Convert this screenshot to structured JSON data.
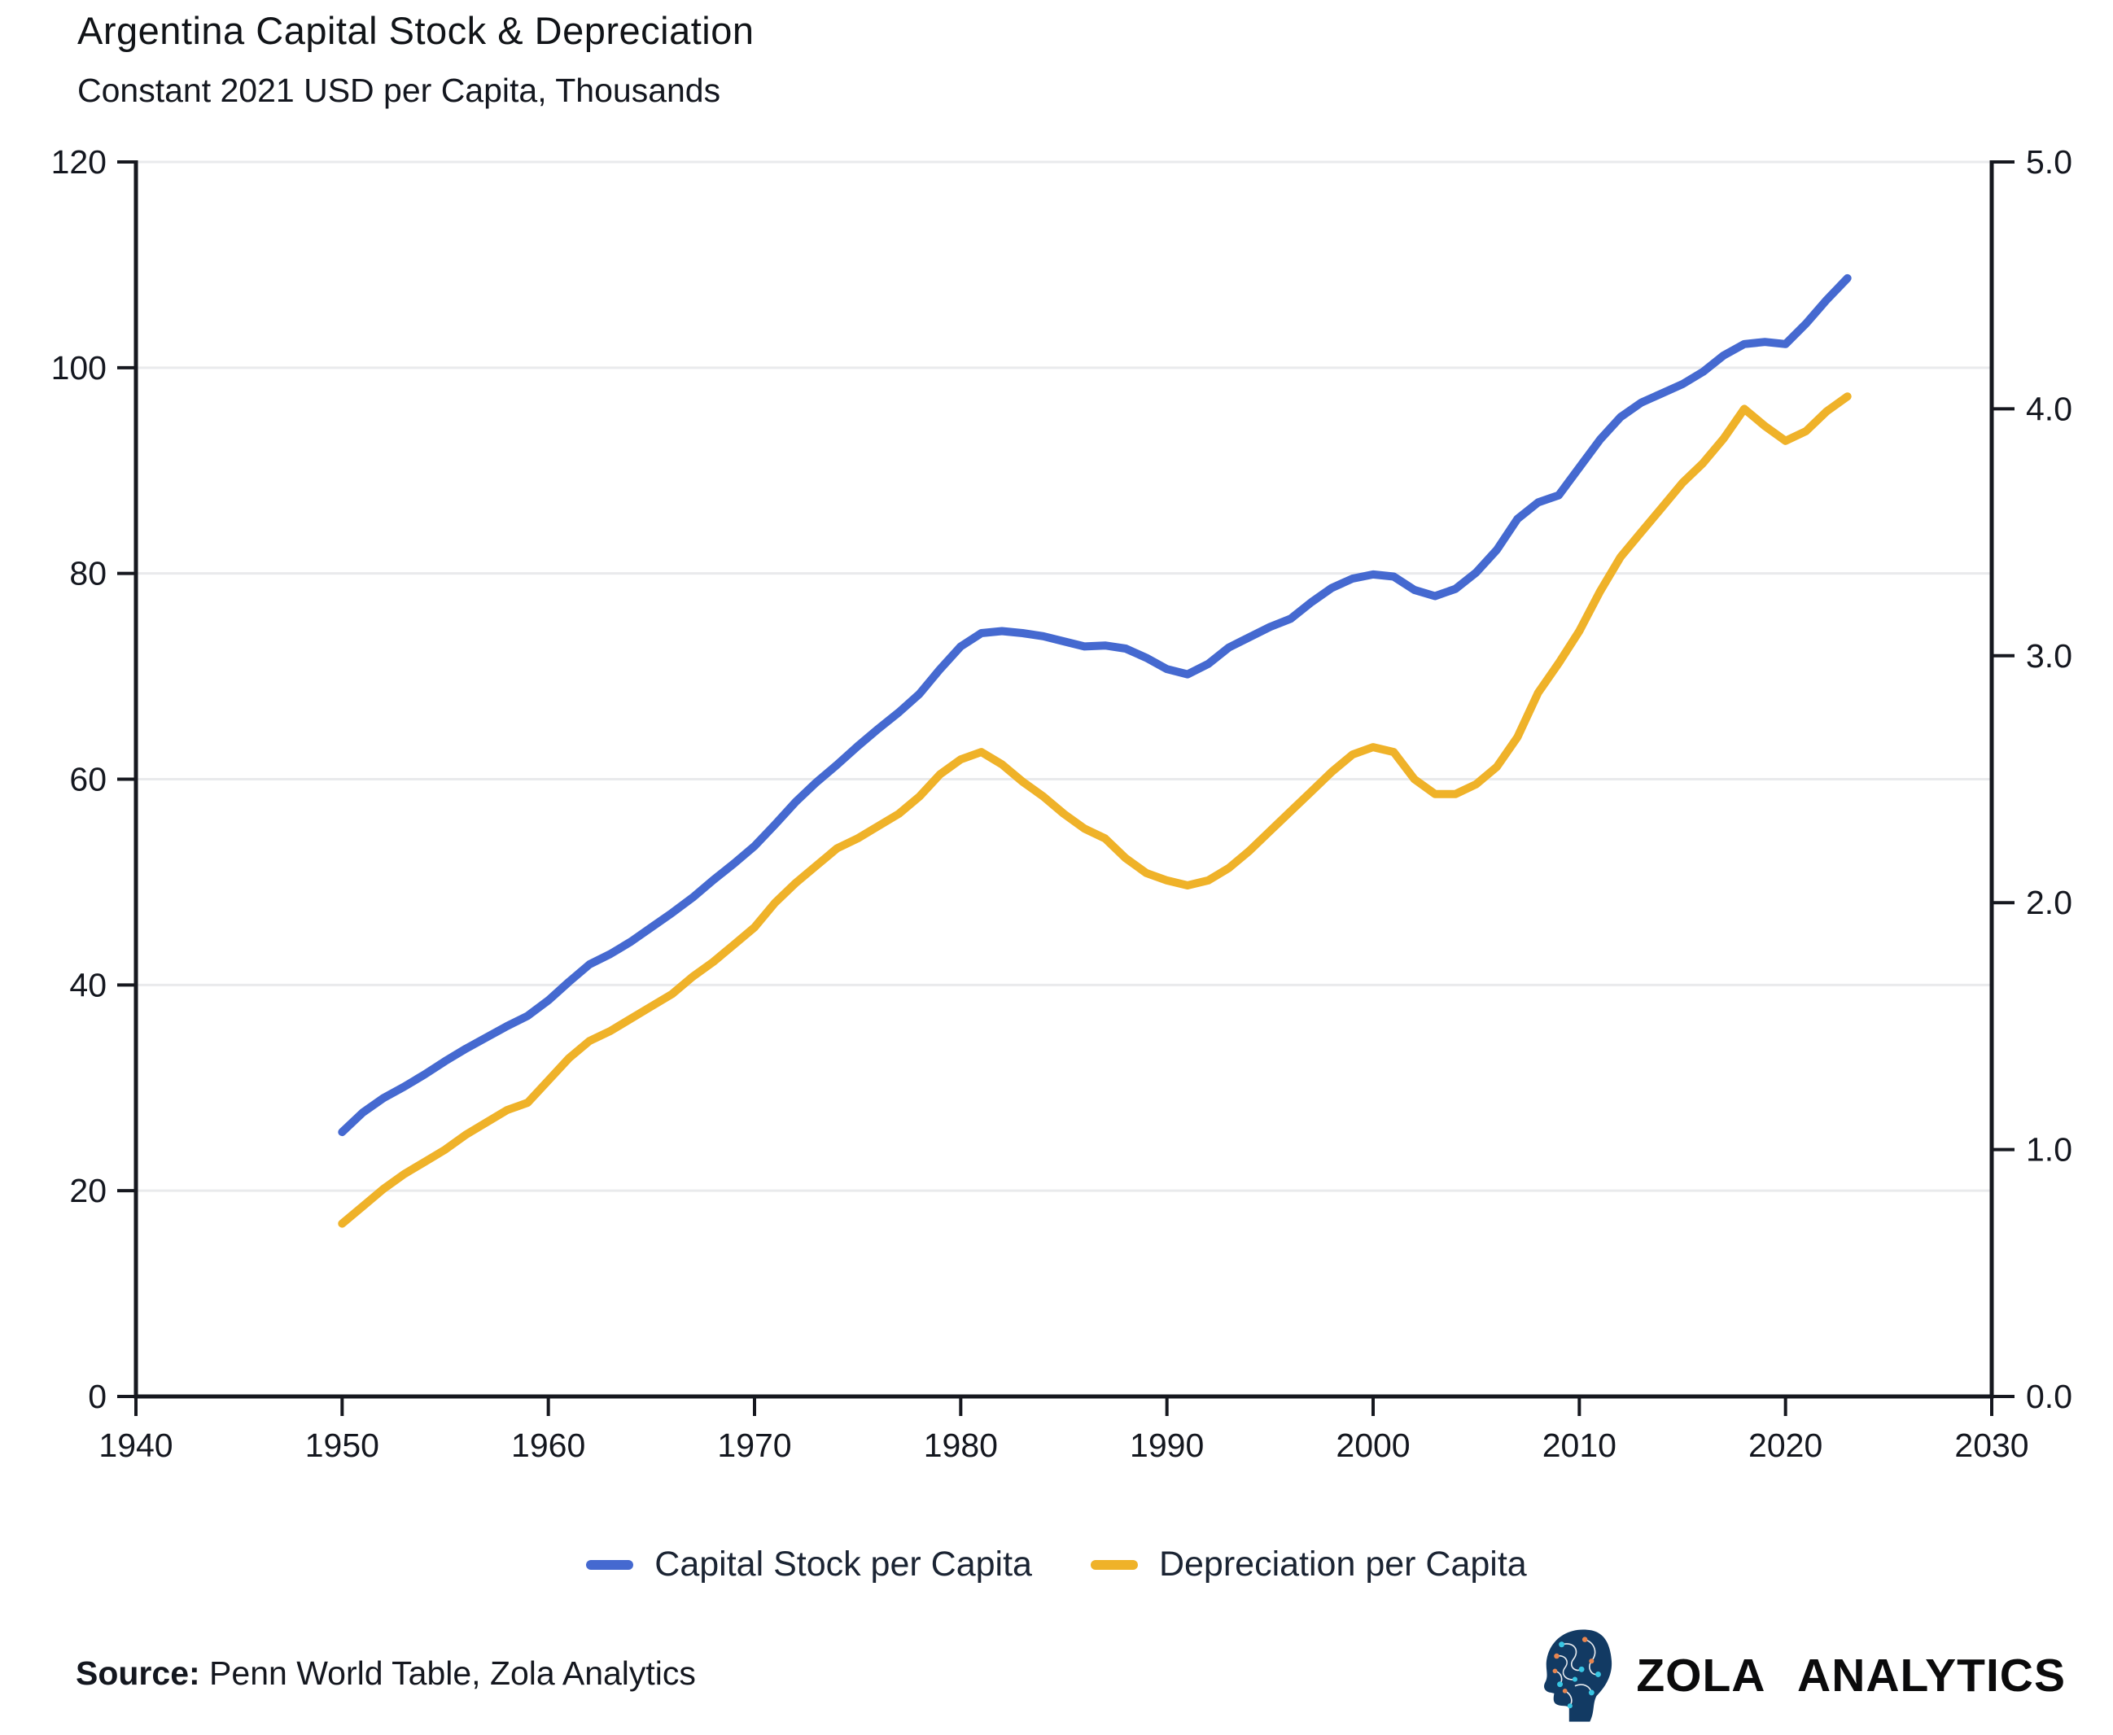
{
  "header": {
    "title": "Argentina Capital Stock & Depreciation",
    "subtitle": "Constant 2021 USD per Capita, Thousands"
  },
  "chart_data": {
    "type": "line",
    "title": "Argentina Capital Stock & Depreciation",
    "subtitle": "Constant 2021 USD per Capita, Thousands",
    "grid": true,
    "legend_position": "bottom",
    "x_axis": {
      "min": 1940,
      "max": 2030,
      "tick_step": 10,
      "ticks": [
        1940,
        1950,
        1960,
        1970,
        1980,
        1990,
        2000,
        2010,
        2020,
        2030
      ]
    },
    "left_axis": {
      "min": 0,
      "max": 120,
      "tick_step": 20,
      "ticks": [
        0,
        20,
        40,
        60,
        80,
        100,
        120
      ]
    },
    "right_axis": {
      "min": 0,
      "max": 5,
      "tick_step": 1,
      "tick_labels": [
        "0.0",
        "1.0",
        "2.0",
        "3.0",
        "4.0",
        "5.0"
      ],
      "ticks": [
        0,
        1,
        2,
        3,
        4,
        5
      ]
    },
    "x": [
      1950,
      1951,
      1952,
      1953,
      1954,
      1955,
      1956,
      1957,
      1958,
      1959,
      1960,
      1961,
      1962,
      1963,
      1964,
      1965,
      1966,
      1967,
      1968,
      1969,
      1970,
      1971,
      1972,
      1973,
      1974,
      1975,
      1976,
      1977,
      1978,
      1979,
      1980,
      1981,
      1982,
      1983,
      1984,
      1985,
      1986,
      1987,
      1988,
      1989,
      1990,
      1991,
      1992,
      1993,
      1994,
      1995,
      1996,
      1997,
      1998,
      1999,
      2000,
      2001,
      2002,
      2003,
      2004,
      2005,
      2006,
      2007,
      2008,
      2009,
      2010,
      2011,
      2012,
      2013,
      2014,
      2015,
      2016,
      2017,
      2018,
      2019,
      2020,
      2021,
      2022,
      2023
    ],
    "series": [
      {
        "name": "Capital Stock per Capita",
        "axis": "left",
        "color": "#4569d0",
        "values": [
          25.7,
          27.6,
          29.0,
          30.1,
          31.3,
          32.6,
          33.8,
          34.9,
          36.0,
          37.0,
          38.5,
          40.3,
          42.0,
          43.0,
          44.2,
          45.6,
          47.0,
          48.5,
          50.2,
          51.8,
          53.5,
          55.6,
          57.8,
          59.7,
          61.4,
          63.2,
          64.9,
          66.5,
          68.3,
          70.7,
          72.9,
          74.2,
          74.4,
          74.2,
          73.9,
          73.4,
          72.9,
          73.0,
          72.7,
          71.8,
          70.7,
          70.2,
          71.2,
          72.8,
          73.8,
          74.8,
          75.6,
          77.2,
          78.6,
          79.5,
          79.9,
          79.7,
          78.4,
          77.8,
          78.5,
          80.1,
          82.3,
          85.3,
          86.9,
          87.6,
          90.3,
          93.0,
          95.2,
          96.6,
          97.5,
          98.4,
          99.6,
          101.2,
          102.3,
          102.5,
          102.3,
          104.3,
          106.6,
          108.7
        ]
      },
      {
        "name": "Depreciation per Capita",
        "axis": "right",
        "color": "#efb229",
        "values": [
          0.7,
          0.77,
          0.84,
          0.9,
          0.95,
          1.0,
          1.06,
          1.11,
          1.16,
          1.19,
          1.28,
          1.37,
          1.44,
          1.48,
          1.53,
          1.58,
          1.63,
          1.7,
          1.76,
          1.83,
          1.9,
          2.0,
          2.08,
          2.15,
          2.22,
          2.26,
          2.31,
          2.36,
          2.43,
          2.52,
          2.58,
          2.61,
          2.56,
          2.49,
          2.43,
          2.36,
          2.3,
          2.26,
          2.18,
          2.12,
          2.09,
          2.07,
          2.09,
          2.14,
          2.21,
          2.29,
          2.37,
          2.45,
          2.53,
          2.6,
          2.63,
          2.61,
          2.5,
          2.44,
          2.44,
          2.48,
          2.55,
          2.67,
          2.85,
          2.97,
          3.1,
          3.26,
          3.4,
          3.5,
          3.6,
          3.7,
          3.78,
          3.88,
          4.0,
          3.93,
          3.87,
          3.91,
          3.99,
          4.05
        ]
      }
    ],
    "style": {
      "axis_color": "#16181f",
      "gridline_color": "#e9eaec",
      "tick_label_color": "#14171f"
    }
  },
  "legend": {
    "items": [
      {
        "label": "Capital Stock per Capita",
        "color": "#4569d0"
      },
      {
        "label": "Depreciation per Capita",
        "color": "#efb229"
      }
    ]
  },
  "footer": {
    "source_label": "Source:",
    "source_text": " Penn World Table, Zola Analytics",
    "brand_text": "ZOLA ANALYTICS",
    "logo": {
      "navy": "#123a63",
      "cyan": "#38c6e3",
      "orange": "#e8854f",
      "trace": "#ffffff"
    }
  }
}
